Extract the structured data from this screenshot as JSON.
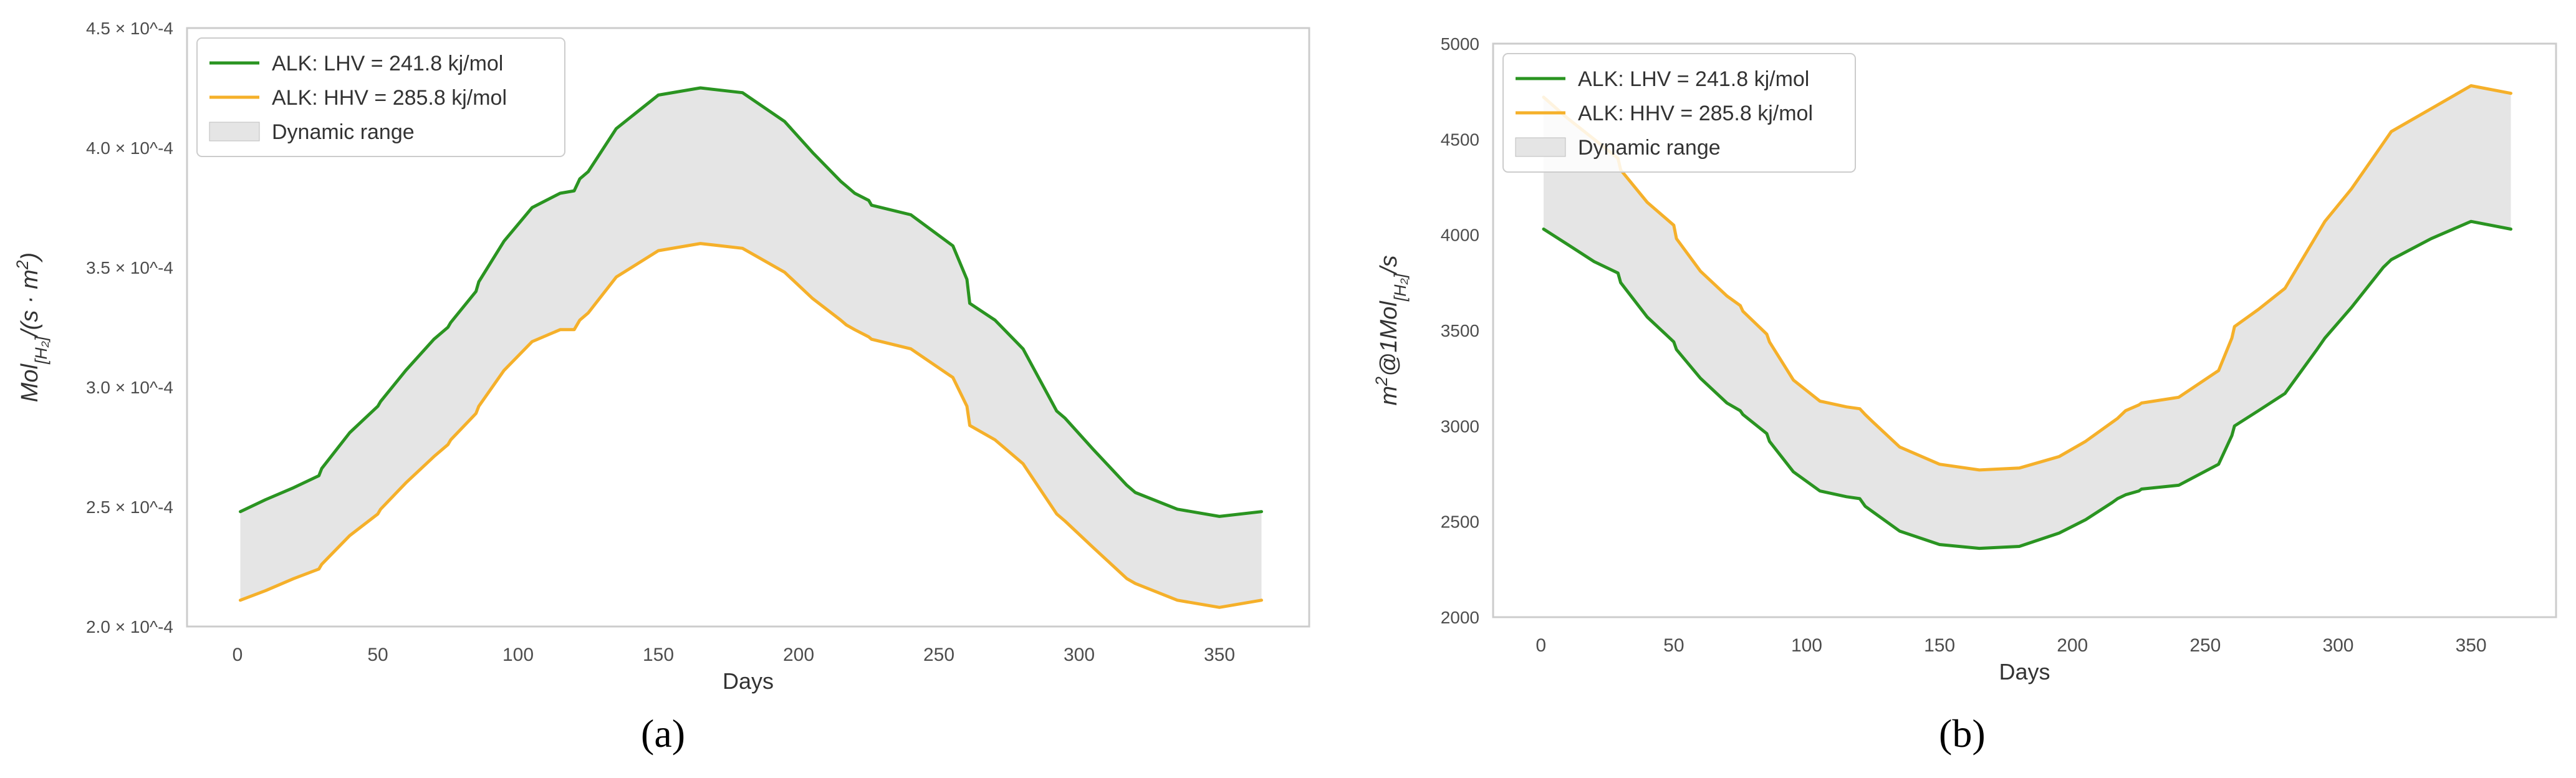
{
  "chart_data": [
    {
      "panel_label": "(a)",
      "panel_letter": "a",
      "type": "line",
      "title": "",
      "xlabel": "Days",
      "ylabel_html": "Mol<tspan baseline-shift=\"sub\" font-size=\"70%\">[H₂]</tspan>/(s · m<tspan baseline-shift=\"super\" font-size=\"70%\">2</tspan>)",
      "xlim": [
        -18,
        382
      ],
      "ylim": [
        0.0002,
        0.00045
      ],
      "xticks": [
        0,
        50,
        100,
        150,
        200,
        250,
        300,
        350
      ],
      "yticks": [
        0.0002,
        0.00025,
        0.0003,
        0.00035,
        0.0004,
        0.00045
      ],
      "ytick_labels": [
        "2.0 × 10^-4",
        "2.5 × 10^-4",
        "3.0 × 10^-4",
        "3.5 × 10^-4",
        "4.0 × 10^-4",
        "4.5 × 10^-4"
      ],
      "grid": false,
      "legend_position": "top-left",
      "legend": [
        "ALK: LHV = 241.8 kj/mol",
        "ALK: HHV = 285.8 kj/mol",
        "Dynamic range"
      ],
      "fill_between": {
        "name": "Dynamic range",
        "color": "#e5e5e5",
        "between": [
          "ALK: LHV = 241.8 kj/mol",
          "ALK: HHV = 285.8 kj/mol"
        ]
      },
      "series": [
        {
          "name": "ALK: LHV = 241.8 kj/mol",
          "color": "#2a9421",
          "x": [
            1,
            10,
            20,
            29,
            30,
            40,
            50,
            51,
            60,
            70,
            75,
            76,
            85,
            86,
            95,
            105,
            115,
            120,
            122,
            125,
            135,
            150,
            165,
            180,
            195,
            205,
            215,
            217,
            220,
            225,
            226,
            240,
            255,
            260,
            261,
            270,
            280,
            292,
            295,
            305,
            317,
            320,
            335,
            350,
            365
          ],
          "y": [
            0.000248,
            0.000253,
            0.000258,
            0.000263,
            0.000266,
            0.000281,
            0.000292,
            0.000294,
            0.000307,
            0.00032,
            0.000325,
            0.000327,
            0.00034,
            0.000344,
            0.000361,
            0.000375,
            0.000381,
            0.000382,
            0.000387,
            0.00039,
            0.000408,
            0.000422,
            0.000425,
            0.000423,
            0.000411,
            0.000398,
            0.000386,
            0.000384,
            0.000381,
            0.000378,
            0.000376,
            0.000372,
            0.000359,
            0.000345,
            0.000335,
            0.000328,
            0.000316,
            0.00029,
            0.000287,
            0.000274,
            0.000259,
            0.000256,
            0.000249,
            0.000246,
            0.000248
          ]
        },
        {
          "name": "ALK: HHV = 285.8 kj/mol",
          "color": "#f5b02a",
          "x": [
            1,
            10,
            20,
            29,
            30,
            40,
            50,
            51,
            60,
            70,
            75,
            76,
            85,
            86,
            95,
            105,
            115,
            120,
            122,
            125,
            135,
            150,
            165,
            180,
            195,
            205,
            215,
            217,
            220,
            225,
            226,
            240,
            255,
            260,
            261,
            270,
            280,
            292,
            295,
            305,
            317,
            320,
            335,
            350,
            365
          ],
          "y": [
            0.000211,
            0.000215,
            0.00022,
            0.000224,
            0.000226,
            0.000238,
            0.000247,
            0.000249,
            0.00026,
            0.000271,
            0.000276,
            0.000278,
            0.000289,
            0.000292,
            0.000307,
            0.000319,
            0.000324,
            0.000324,
            0.000328,
            0.000331,
            0.000346,
            0.000357,
            0.00036,
            0.000358,
            0.000348,
            0.000337,
            0.000328,
            0.000326,
            0.000324,
            0.000321,
            0.00032,
            0.000316,
            0.000304,
            0.000292,
            0.000284,
            0.000278,
            0.000268,
            0.000247,
            0.000244,
            0.000233,
            0.00022,
            0.000218,
            0.000211,
            0.000208,
            0.000211
          ]
        }
      ]
    },
    {
      "panel_label": "(b)",
      "panel_letter": "b",
      "type": "line",
      "title": "",
      "xlabel": "Days",
      "ylabel_html": "m<tspan baseline-shift=\"super\" font-size=\"70%\">2</tspan>@1Mol<tspan baseline-shift=\"sub\" font-size=\"70%\">[H₂]</tspan>/s",
      "xlim": [
        -18,
        382
      ],
      "ylim": [
        2000,
        5000
      ],
      "xticks": [
        0,
        50,
        100,
        150,
        200,
        250,
        300,
        350
      ],
      "yticks": [
        2000,
        2500,
        3000,
        3500,
        4000,
        4500,
        5000
      ],
      "ytick_labels": [
        "2000",
        "2500",
        "3000",
        "3500",
        "4000",
        "4500",
        "5000"
      ],
      "grid": false,
      "legend_position": "top-left",
      "legend": [
        "ALK: LHV = 241.8 kj/mol",
        "ALK: HHV = 285.8 kj/mol",
        "Dynamic range"
      ],
      "fill_between": {
        "name": "Dynamic range",
        "color": "#e5e5e5",
        "between": [
          "ALK: LHV = 241.8 kj/mol",
          "ALK: HHV = 285.8 kj/mol"
        ]
      },
      "series": [
        {
          "name": "ALK: LHV = 241.8 kj/mol",
          "color": "#2a9421",
          "x": [
            1,
            10,
            20,
            29,
            30,
            40,
            50,
            51,
            60,
            70,
            75,
            76,
            85,
            86,
            95,
            105,
            115,
            120,
            122,
            125,
            135,
            150,
            165,
            180,
            195,
            205,
            215,
            217,
            220,
            225,
            226,
            240,
            255,
            260,
            261,
            270,
            280,
            292,
            295,
            305,
            317,
            320,
            335,
            350,
            365
          ],
          "y": [
            4030,
            3950,
            3860,
            3800,
            3750,
            3570,
            3440,
            3400,
            3250,
            3120,
            3080,
            3060,
            2960,
            2920,
            2760,
            2660,
            2630,
            2620,
            2580,
            2550,
            2450,
            2380,
            2360,
            2370,
            2440,
            2510,
            2600,
            2620,
            2640,
            2660,
            2670,
            2690,
            2800,
            2950,
            3000,
            3080,
            3170,
            3400,
            3460,
            3620,
            3830,
            3870,
            3980,
            4070,
            4030
          ]
        },
        {
          "name": "ALK: HHV = 285.8 kj/mol",
          "color": "#f5b02a",
          "x": [
            1,
            10,
            20,
            29,
            30,
            40,
            50,
            51,
            60,
            70,
            75,
            76,
            85,
            86,
            95,
            105,
            115,
            120,
            122,
            125,
            135,
            150,
            165,
            180,
            195,
            205,
            215,
            217,
            220,
            225,
            226,
            240,
            255,
            260,
            261,
            270,
            280,
            292,
            295,
            305,
            317,
            320,
            335,
            350,
            365
          ],
          "y": [
            4720,
            4610,
            4500,
            4400,
            4340,
            4170,
            4050,
            3980,
            3810,
            3680,
            3630,
            3600,
            3480,
            3440,
            3240,
            3130,
            3100,
            3090,
            3060,
            3020,
            2890,
            2800,
            2770,
            2780,
            2840,
            2920,
            3020,
            3040,
            3080,
            3110,
            3120,
            3150,
            3290,
            3460,
            3520,
            3610,
            3720,
            4000,
            4070,
            4240,
            4480,
            4540,
            4660,
            4780,
            4740
          ]
        }
      ]
    }
  ]
}
